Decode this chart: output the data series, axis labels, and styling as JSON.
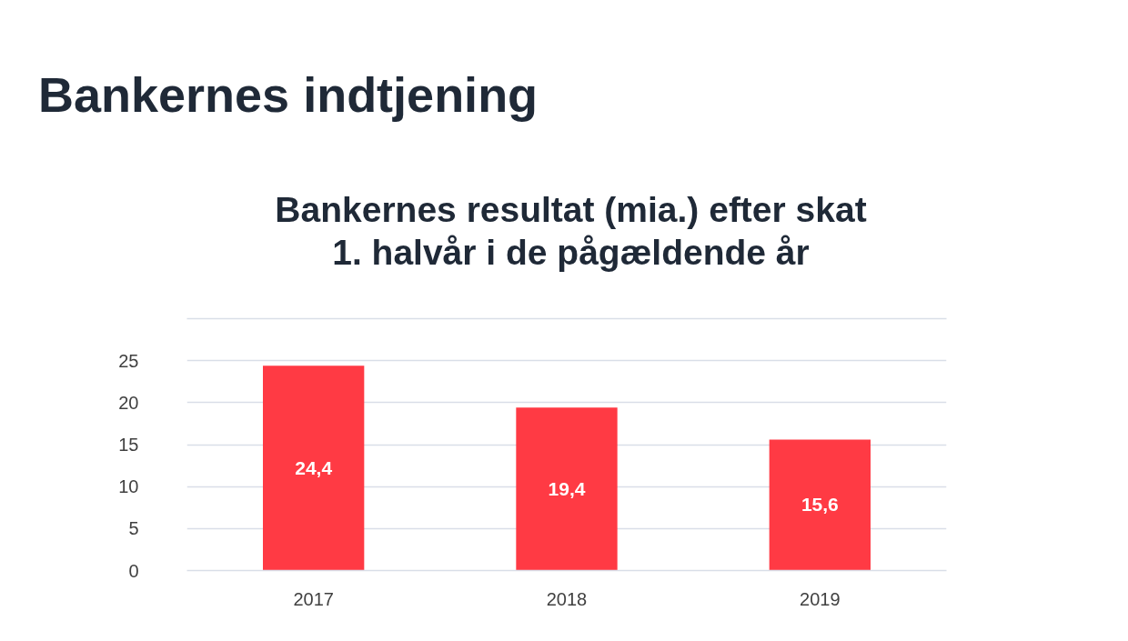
{
  "chart_data": {
    "type": "bar",
    "title": "Bankernes indtjening",
    "subtitle": "Bankernes resultat (mia.) efter skat\n1. halvår i de pågældende år",
    "categories": [
      "2017",
      "2018",
      "2019"
    ],
    "values": [
      24.4,
      19.4,
      15.6
    ],
    "value_labels": [
      "24,4",
      "19,4",
      "15,6"
    ],
    "color": "#ff3a44",
    "ylim": [
      0,
      30
    ],
    "yticks": [
      0,
      5,
      10,
      15,
      20,
      25,
      {
        "value": 30,
        "label": null
      }
    ],
    "grid": "y"
  }
}
